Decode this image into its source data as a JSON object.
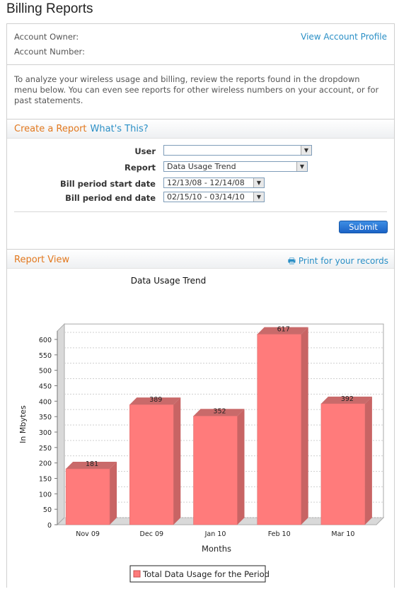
{
  "page": {
    "title": "Billing Reports"
  },
  "account": {
    "owner_label": "Account Owner:",
    "number_label": "Account Number:",
    "profile_link": "View Account Profile"
  },
  "intro": "To analyze your wireless usage and billing, review the reports found in the dropdown menu below. You can even see reports for other wireless numbers on your account, or for past statements.",
  "create": {
    "heading": "Create a Report",
    "help_link": "What's This?",
    "user_label": "User",
    "user_value": "",
    "report_label": "Report",
    "report_value": "Data Usage Trend",
    "start_label": "Bill period start date",
    "start_value": "12/13/08 - 12/14/08",
    "end_label": "Bill period end date",
    "end_value": "02/15/10 - 03/14/10",
    "submit": "Submit"
  },
  "report_view": {
    "heading": "Report View",
    "print_link": "Print for your records"
  },
  "colors": {
    "bar": "#ff7b7b",
    "bar_side": "#c86464",
    "bar_top": "#c96a6a",
    "accent": "#e2781e",
    "link": "#2a8fc6"
  },
  "chart_data": {
    "type": "bar",
    "title": "Data Usage Trend",
    "categories": [
      "Nov 09",
      "Dec 09",
      "Jan 10",
      "Feb 10",
      "Mar 10"
    ],
    "series": [
      {
        "name": "Total Data Usage for the Period",
        "values": [
          181,
          389,
          352,
          617,
          392
        ]
      }
    ],
    "xlabel": "Months",
    "ylabel": "In Mbytes",
    "ylim": [
      0,
      650
    ],
    "yticks": [
      0,
      50,
      100,
      150,
      200,
      250,
      300,
      350,
      400,
      450,
      500,
      550,
      600
    ],
    "grid": true,
    "legend": "bottom"
  }
}
